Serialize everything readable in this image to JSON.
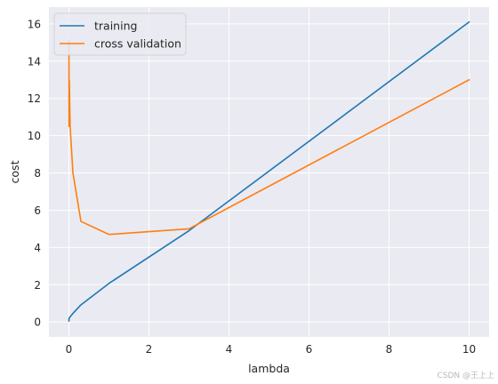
{
  "chart_data": {
    "type": "line",
    "title": "",
    "xlabel": "lambda",
    "ylabel": "cost",
    "xlim": [
      -0.5,
      10.5
    ],
    "ylim": [
      -0.8,
      16.9
    ],
    "xticks": [
      0,
      2,
      4,
      6,
      8,
      10
    ],
    "yticks": [
      0,
      2,
      4,
      6,
      8,
      10,
      12,
      14,
      16
    ],
    "grid": true,
    "legend_position": "top-left",
    "series": [
      {
        "name": "training",
        "color": "#1f77b4",
        "x": [
          0,
          0.001,
          0.003,
          0.01,
          0.03,
          0.1,
          0.3,
          1,
          3,
          10
        ],
        "y": [
          0.05,
          0.12,
          0.17,
          0.22,
          0.28,
          0.46,
          0.92,
          2.07,
          4.9,
          16.1
        ]
      },
      {
        "name": "cross validation",
        "color": "#ff7f0e",
        "x": [
          0,
          0.001,
          0.003,
          0.01,
          0.03,
          0.1,
          0.3,
          1,
          3,
          10
        ],
        "y": [
          14.2,
          15.1,
          10.5,
          13.0,
          10.5,
          8.0,
          5.4,
          4.7,
          5.0,
          13.0
        ]
      }
    ]
  },
  "watermark": "CSDN @王上上"
}
